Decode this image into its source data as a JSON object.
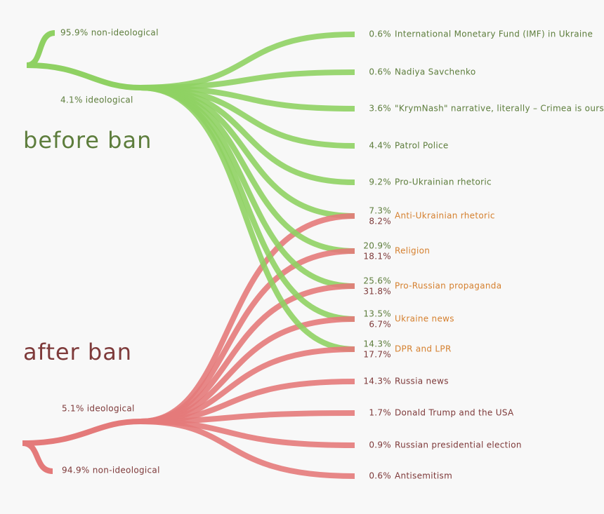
{
  "before": {
    "title": "before ban",
    "non_ideological": "95.9% non-ideological",
    "ideological": "4.1% ideological"
  },
  "after": {
    "title": "after ban",
    "ideological": "5.1% ideological",
    "non_ideological": "94.9% non-ideological"
  },
  "topics": [
    {
      "name": "International Monetary Fund (IMF) in Ukraine",
      "before": "0.6%"
    },
    {
      "name": "Nadiya Savchenko",
      "before": "0.6%"
    },
    {
      "name": "\"KrymNash\" narrative, literally – Crimea is ours",
      "before": "3.6%"
    },
    {
      "name": "Patrol Police",
      "before": "4.4%"
    },
    {
      "name": "Pro-Ukrainian rhetoric",
      "before": "9.2%"
    },
    {
      "name": "Anti-Ukrainian rhetoric",
      "before": "7.3%",
      "after": "8.2%"
    },
    {
      "name": "Religion",
      "before": "20.9%",
      "after": "18.1%"
    },
    {
      "name": "Pro-Russian propaganda",
      "before": "25.6%",
      "after": "31.8%"
    },
    {
      "name": "Ukraine news",
      "before": "13.5%",
      "after": "6.7%"
    },
    {
      "name": "DPR and LPR",
      "before": "14.3%",
      "after": "17.7%"
    },
    {
      "name": "Russia news",
      "after": "14.3%"
    },
    {
      "name": "Donald Trump and the USA",
      "after": "1.7%"
    },
    {
      "name": "Russian presidential election",
      "after": "0.9%"
    },
    {
      "name": "Antisemitism",
      "after": "0.6%"
    }
  ]
}
